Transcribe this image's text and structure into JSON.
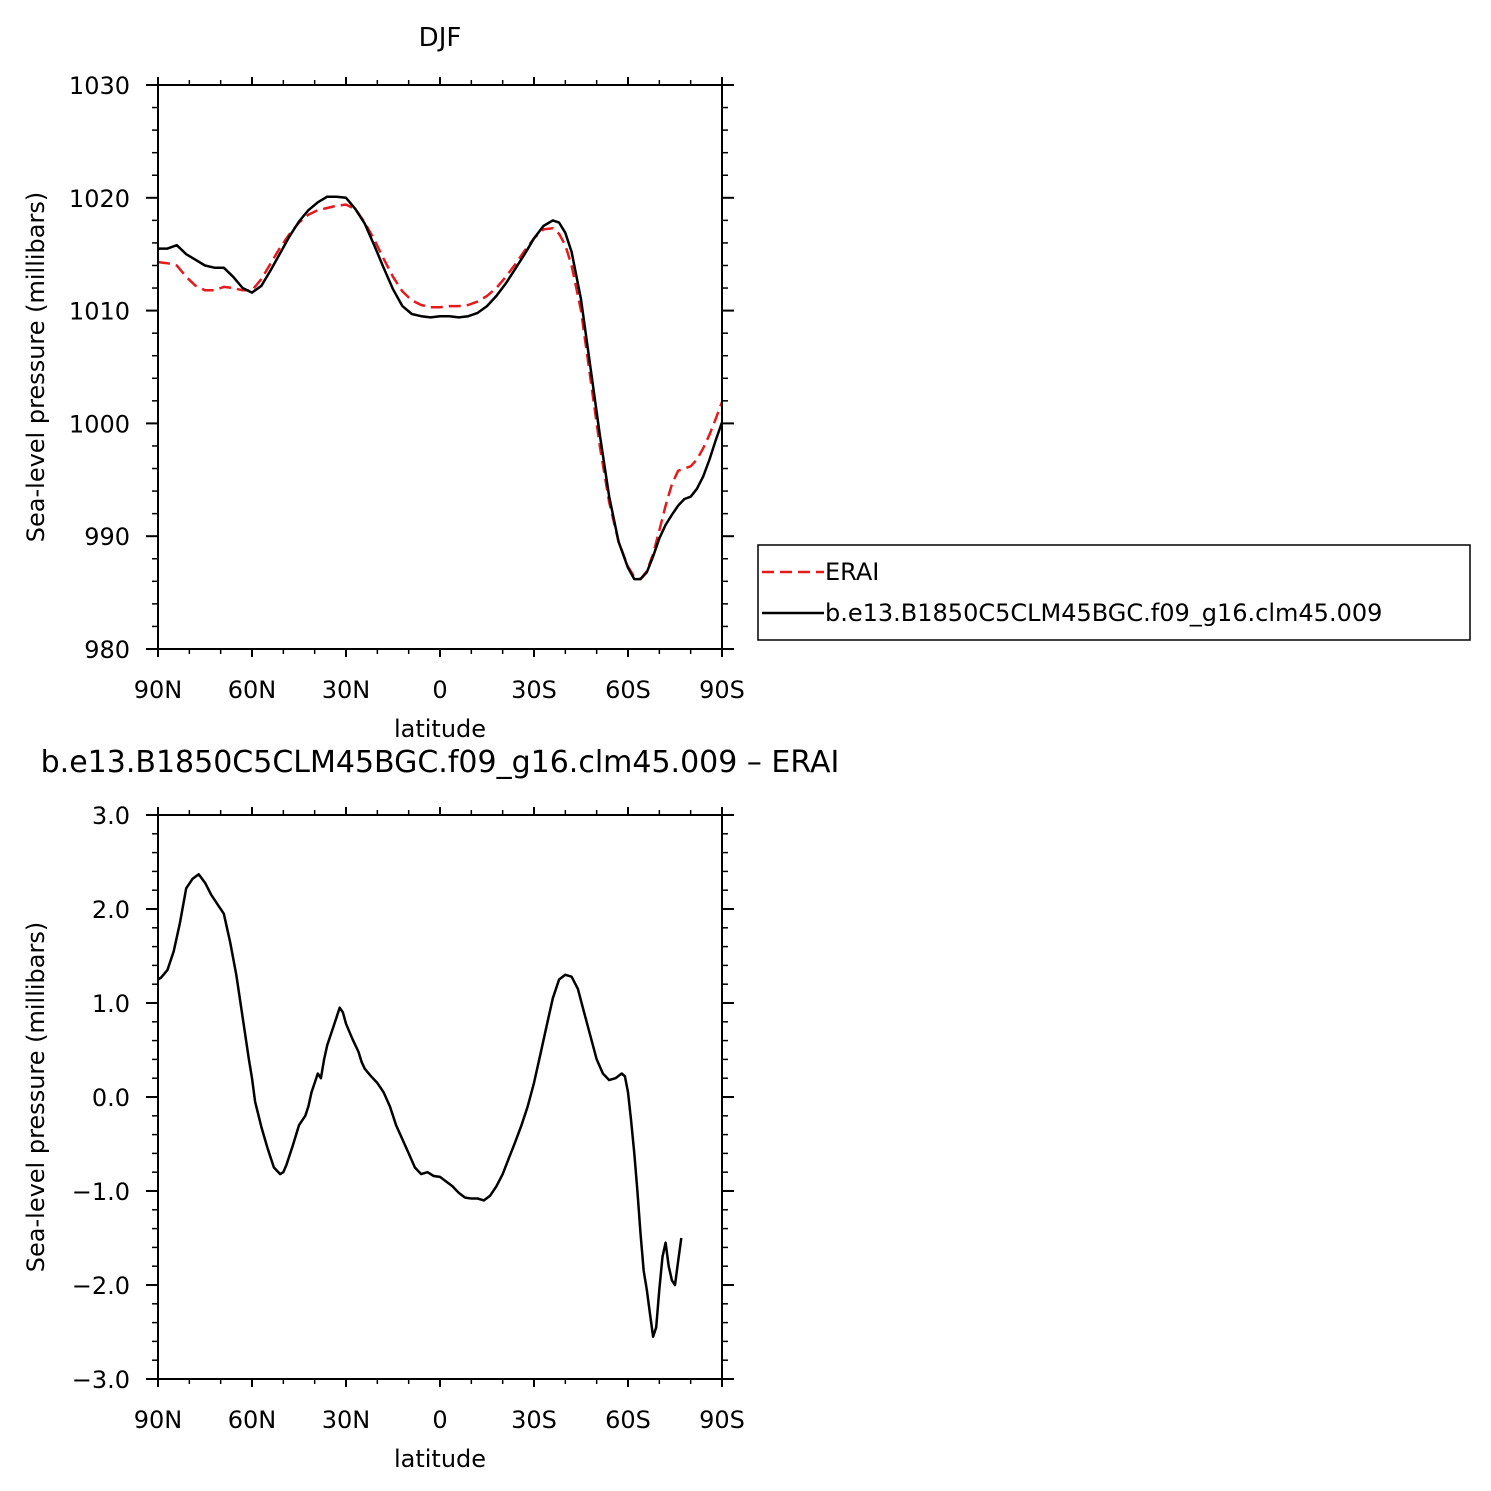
{
  "chart_data": [
    {
      "type": "line",
      "title": "DJF",
      "xlabel": "latitude",
      "ylabel": "Sea-level pressure (millibars)",
      "xlim": [
        90,
        -90
      ],
      "ylim": [
        980,
        1030
      ],
      "x_ticks": [
        {
          "value": 90,
          "label": "90N"
        },
        {
          "value": 60,
          "label": "60N"
        },
        {
          "value": 30,
          "label": "30N"
        },
        {
          "value": 0,
          "label": "0"
        },
        {
          "value": -30,
          "label": "30S"
        },
        {
          "value": -60,
          "label": "60S"
        },
        {
          "value": -90,
          "label": "90S"
        }
      ],
      "y_ticks": [
        {
          "value": 980,
          "label": "980"
        },
        {
          "value": 990,
          "label": "990"
        },
        {
          "value": 1000,
          "label": "1000"
        },
        {
          "value": 1010,
          "label": "1010"
        },
        {
          "value": 1020,
          "label": "1020"
        },
        {
          "value": 1030,
          "label": "1030"
        }
      ],
      "grid": false,
      "legend": {
        "placement": "right-outside"
      },
      "series": [
        {
          "name": "ERAI",
          "color": "#e41a1c",
          "dash": true,
          "points": [
            [
              90,
              1014.3
            ],
            [
              87,
              1014.2
            ],
            [
              84,
              1014.0
            ],
            [
              81,
              1013.0
            ],
            [
              78,
              1012.2
            ],
            [
              75,
              1011.8
            ],
            [
              72,
              1011.8
            ],
            [
              69,
              1012.1
            ],
            [
              66,
              1012.0
            ],
            [
              63,
              1011.8
            ],
            [
              60,
              1011.8
            ],
            [
              57,
              1012.8
            ],
            [
              54,
              1014.2
            ],
            [
              51,
              1015.6
            ],
            [
              48,
              1016.8
            ],
            [
              45,
              1017.8
            ],
            [
              42,
              1018.5
            ],
            [
              39,
              1018.9
            ],
            [
              36,
              1019.1
            ],
            [
              33,
              1019.3
            ],
            [
              30,
              1019.4
            ],
            [
              27,
              1019.0
            ],
            [
              24,
              1017.8
            ],
            [
              21,
              1016.3
            ],
            [
              18,
              1014.6
            ],
            [
              15,
              1013.0
            ],
            [
              12,
              1011.7
            ],
            [
              9,
              1010.9
            ],
            [
              6,
              1010.5
            ],
            [
              3,
              1010.3
            ],
            [
              0,
              1010.3
            ],
            [
              -3,
              1010.4
            ],
            [
              -6,
              1010.4
            ],
            [
              -9,
              1010.5
            ],
            [
              -12,
              1010.8
            ],
            [
              -15,
              1011.3
            ],
            [
              -18,
              1012.0
            ],
            [
              -21,
              1013.0
            ],
            [
              -24,
              1014.1
            ],
            [
              -27,
              1015.3
            ],
            [
              -30,
              1016.4
            ],
            [
              -33,
              1017.2
            ],
            [
              -36,
              1017.3
            ],
            [
              -38,
              1016.8
            ],
            [
              -40,
              1015.8
            ],
            [
              -42,
              1014.0
            ],
            [
              -45,
              1010.0
            ],
            [
              -48,
              1004.0
            ],
            [
              -51,
              998.0
            ],
            [
              -54,
              993.0
            ],
            [
              -57,
              989.5
            ],
            [
              -60,
              987.3
            ],
            [
              -62,
              986.4
            ],
            [
              -64,
              986.2
            ],
            [
              -66,
              986.9
            ],
            [
              -68,
              988.4
            ],
            [
              -70,
              990.5
            ],
            [
              -72,
              992.7
            ],
            [
              -74,
              994.6
            ],
            [
              -76,
              995.8
            ],
            [
              -78,
              996.0
            ],
            [
              -80,
              996.2
            ],
            [
              -82,
              996.8
            ],
            [
              -84,
              997.8
            ],
            [
              -86,
              999.0
            ],
            [
              -88,
              1000.4
            ],
            [
              -90,
              1001.9
            ]
          ]
        },
        {
          "name": "b.e13.B1850C5CLM45BGC.f09_g16.clm45.009",
          "color": "#000000",
          "dash": false,
          "points": [
            [
              90,
              1015.5
            ],
            [
              87,
              1015.5
            ],
            [
              84,
              1015.8
            ],
            [
              81,
              1015.0
            ],
            [
              78,
              1014.5
            ],
            [
              75,
              1014.0
            ],
            [
              72,
              1013.8
            ],
            [
              69,
              1013.8
            ],
            [
              66,
              1013.0
            ],
            [
              63,
              1012.0
            ],
            [
              60,
              1011.6
            ],
            [
              57,
              1012.2
            ],
            [
              54,
              1013.6
            ],
            [
              51,
              1015.1
            ],
            [
              48,
              1016.6
            ],
            [
              45,
              1017.9
            ],
            [
              42,
              1018.9
            ],
            [
              39,
              1019.6
            ],
            [
              36,
              1020.1
            ],
            [
              33,
              1020.1
            ],
            [
              30,
              1020.0
            ],
            [
              27,
              1019.0
            ],
            [
              24,
              1017.7
            ],
            [
              21,
              1015.8
            ],
            [
              18,
              1013.8
            ],
            [
              15,
              1011.9
            ],
            [
              12,
              1010.4
            ],
            [
              9,
              1009.7
            ],
            [
              6,
              1009.5
            ],
            [
              3,
              1009.4
            ],
            [
              0,
              1009.5
            ],
            [
              -3,
              1009.5
            ],
            [
              -6,
              1009.4
            ],
            [
              -9,
              1009.5
            ],
            [
              -12,
              1009.8
            ],
            [
              -15,
              1010.4
            ],
            [
              -18,
              1011.3
            ],
            [
              -21,
              1012.4
            ],
            [
              -24,
              1013.7
            ],
            [
              -27,
              1015.0
            ],
            [
              -30,
              1016.4
            ],
            [
              -33,
              1017.5
            ],
            [
              -36,
              1018.0
            ],
            [
              -38,
              1017.8
            ],
            [
              -40,
              1016.9
            ],
            [
              -42,
              1015.2
            ],
            [
              -45,
              1011.0
            ],
            [
              -48,
              1005.0
            ],
            [
              -51,
              999.0
            ],
            [
              -54,
              993.5
            ],
            [
              -57,
              989.5
            ],
            [
              -60,
              987.2
            ],
            [
              -62,
              986.2
            ],
            [
              -64,
              986.2
            ],
            [
              -66,
              986.8
            ],
            [
              -68,
              988.2
            ],
            [
              -70,
              989.8
            ],
            [
              -72,
              991.0
            ],
            [
              -74,
              991.9
            ],
            [
              -76,
              992.7
            ],
            [
              -78,
              993.3
            ],
            [
              -80,
              993.5
            ],
            [
              -82,
              994.2
            ],
            [
              -84,
              995.3
            ],
            [
              -86,
              996.8
            ],
            [
              -88,
              998.5
            ],
            [
              -90,
              1000.1
            ]
          ]
        }
      ]
    },
    {
      "type": "line",
      "title": "b.e13.B1850C5CLM45BGC.f09_g16.clm45.009 – ERAI",
      "xlabel": "latitude",
      "ylabel": "Sea-level pressure (millibars)",
      "xlim": [
        90,
        -90
      ],
      "ylim": [
        -3.0,
        3.0
      ],
      "x_ticks": [
        {
          "value": 90,
          "label": "90N"
        },
        {
          "value": 60,
          "label": "60N"
        },
        {
          "value": 30,
          "label": "30N"
        },
        {
          "value": 0,
          "label": "0"
        },
        {
          "value": -30,
          "label": "30S"
        },
        {
          "value": -60,
          "label": "60S"
        },
        {
          "value": -90,
          "label": "90S"
        }
      ],
      "y_ticks": [
        {
          "value": -3.0,
          "label": "−3.0"
        },
        {
          "value": -2.0,
          "label": "−2.0"
        },
        {
          "value": -1.0,
          "label": "−1.0"
        },
        {
          "value": 0.0,
          "label": "0.0"
        },
        {
          "value": 1.0,
          "label": "1.0"
        },
        {
          "value": 2.0,
          "label": "2.0"
        },
        {
          "value": 3.0,
          "label": "3.0"
        }
      ],
      "grid": false,
      "series": [
        {
          "color": "#000000",
          "dash": false,
          "points": [
            [
              90,
              1.25
            ],
            [
              89,
              1.27
            ],
            [
              87,
              1.35
            ],
            [
              85,
              1.55
            ],
            [
              83,
              1.85
            ],
            [
              81,
              2.22
            ],
            [
              79,
              2.32
            ],
            [
              77,
              2.37
            ],
            [
              75,
              2.28
            ],
            [
              73,
              2.15
            ],
            [
              71,
              2.05
            ],
            [
              69,
              1.95
            ],
            [
              67,
              1.65
            ],
            [
              65,
              1.3
            ],
            [
              63,
              0.85
            ],
            [
              61,
              0.4
            ],
            [
              60,
              0.2
            ],
            [
              59,
              -0.05
            ],
            [
              57,
              -0.32
            ],
            [
              55,
              -0.55
            ],
            [
              53,
              -0.75
            ],
            [
              51,
              -0.82
            ],
            [
              50,
              -0.8
            ],
            [
              49,
              -0.72
            ],
            [
              47,
              -0.52
            ],
            [
              45,
              -0.3
            ],
            [
              43,
              -0.2
            ],
            [
              42,
              -0.1
            ],
            [
              41,
              0.05
            ],
            [
              40,
              0.15
            ],
            [
              39,
              0.25
            ],
            [
              38,
              0.2
            ],
            [
              37,
              0.4
            ],
            [
              36,
              0.55
            ],
            [
              34,
              0.75
            ],
            [
              32,
              0.95
            ],
            [
              31,
              0.9
            ],
            [
              30,
              0.78
            ],
            [
              28,
              0.62
            ],
            [
              26,
              0.48
            ],
            [
              25,
              0.37
            ],
            [
              24,
              0.3
            ],
            [
              22,
              0.22
            ],
            [
              20,
              0.15
            ],
            [
              18,
              0.05
            ],
            [
              16,
              -0.1
            ],
            [
              14,
              -0.3
            ],
            [
              12,
              -0.45
            ],
            [
              10,
              -0.6
            ],
            [
              8,
              -0.75
            ],
            [
              6,
              -0.82
            ],
            [
              4,
              -0.8
            ],
            [
              2,
              -0.84
            ],
            [
              0,
              -0.85
            ],
            [
              -2,
              -0.9
            ],
            [
              -4,
              -0.95
            ],
            [
              -6,
              -1.02
            ],
            [
              -8,
              -1.07
            ],
            [
              -10,
              -1.08
            ],
            [
              -12,
              -1.08
            ],
            [
              -14,
              -1.1
            ],
            [
              -16,
              -1.05
            ],
            [
              -18,
              -0.95
            ],
            [
              -20,
              -0.82
            ],
            [
              -22,
              -0.65
            ],
            [
              -24,
              -0.48
            ],
            [
              -26,
              -0.3
            ],
            [
              -28,
              -0.1
            ],
            [
              -30,
              0.15
            ],
            [
              -32,
              0.45
            ],
            [
              -34,
              0.75
            ],
            [
              -36,
              1.05
            ],
            [
              -38,
              1.25
            ],
            [
              -40,
              1.3
            ],
            [
              -42,
              1.28
            ],
            [
              -44,
              1.15
            ],
            [
              -46,
              0.9
            ],
            [
              -48,
              0.65
            ],
            [
              -50,
              0.4
            ],
            [
              -52,
              0.25
            ],
            [
              -54,
              0.18
            ],
            [
              -56,
              0.2
            ],
            [
              -58,
              0.25
            ],
            [
              -59,
              0.22
            ],
            [
              -60,
              0.05
            ],
            [
              -61,
              -0.25
            ],
            [
              -62,
              -0.6
            ],
            [
              -63,
              -1.0
            ],
            [
              -64,
              -1.45
            ],
            [
              -65,
              -1.85
            ],
            [
              -66,
              -2.05
            ],
            [
              -67,
              -2.3
            ],
            [
              -68,
              -2.55
            ],
            [
              -69,
              -2.45
            ],
            [
              -70,
              -2.05
            ],
            [
              -71,
              -1.7
            ],
            [
              -72,
              -1.55
            ],
            [
              -73,
              -1.8
            ],
            [
              -74,
              -1.95
            ],
            [
              -75,
              -2.0
            ],
            [
              -76,
              -1.75
            ],
            [
              -77,
              -1.5
            ]
          ]
        }
      ]
    }
  ]
}
